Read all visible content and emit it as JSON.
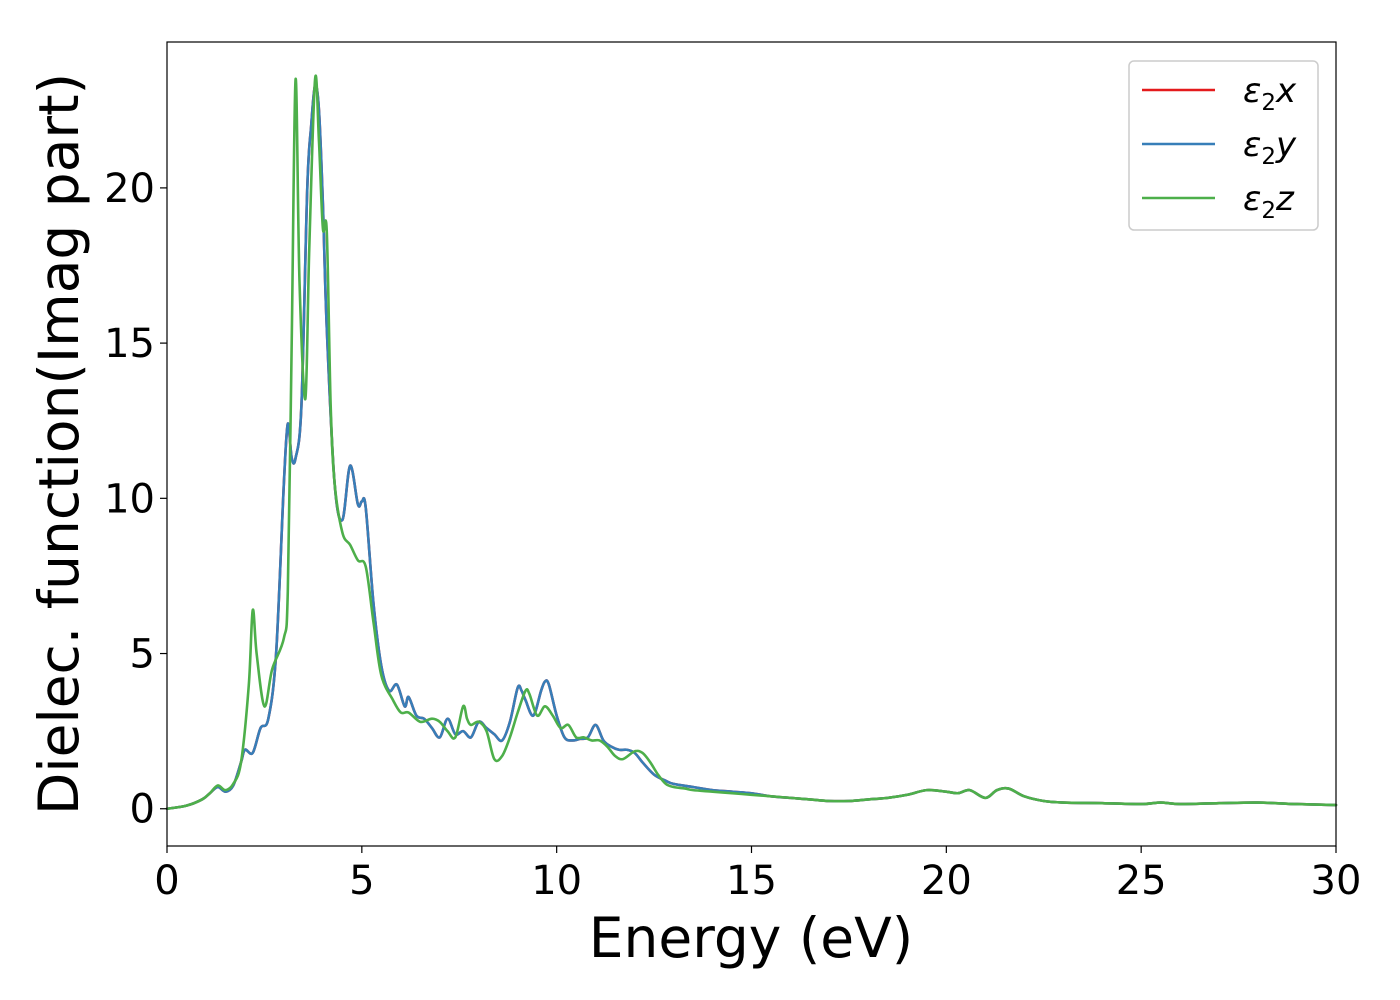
{
  "chart_data": {
    "type": "line",
    "xlabel": "Energy (eV)",
    "ylabel": "Dielec. function(Imag part)",
    "xlim": [
      0,
      30
    ],
    "ylim": [
      -1.2,
      24.7
    ],
    "xticks": [
      0,
      5,
      10,
      15,
      20,
      25,
      30
    ],
    "yticks": [
      0,
      5,
      10,
      15,
      20
    ],
    "grid": false,
    "legend_position": "top-right",
    "series": [
      {
        "name": "ε₂x",
        "legend": {
          "base": "ε",
          "sub": "2",
          "var": "x"
        },
        "color": "#e41a1c",
        "x": [
          0,
          0.5,
          0.9,
          1.1,
          1.3,
          1.5,
          1.7,
          1.9,
          2.0,
          2.2,
          2.4,
          2.6,
          2.8,
          3.0,
          3.1,
          3.2,
          3.3,
          3.45,
          3.6,
          3.7,
          3.8,
          3.9,
          4.0,
          4.1,
          4.3,
          4.5,
          4.7,
          4.9,
          5.0,
          5.1,
          5.3,
          5.5,
          5.7,
          5.9,
          6.1,
          6.2,
          6.4,
          6.6,
          6.8,
          7.0,
          7.2,
          7.4,
          7.6,
          7.8,
          8.0,
          8.2,
          8.4,
          8.6,
          8.8,
          9.0,
          9.1,
          9.2,
          9.4,
          9.6,
          9.7,
          9.8,
          10.0,
          10.2,
          10.4,
          10.6,
          10.8,
          11.0,
          11.2,
          11.4,
          11.6,
          11.8,
          12.0,
          12.2,
          12.5,
          12.8,
          13.0,
          13.5,
          14.0,
          14.5,
          15.0,
          15.5,
          16.0,
          16.5,
          17.0,
          17.5,
          18.0,
          18.5,
          19.0,
          19.5,
          20.0,
          20.3,
          20.6,
          21.0,
          21.3,
          21.6,
          22.0,
          22.5,
          23.0,
          24.0,
          25.0,
          25.5,
          26.0,
          27.0,
          28.0,
          29.0,
          30.0
        ],
        "y": [
          0.0,
          0.1,
          0.3,
          0.5,
          0.7,
          0.55,
          0.75,
          1.5,
          1.9,
          1.8,
          2.6,
          2.9,
          5.0,
          10.5,
          12.4,
          11.3,
          11.3,
          13.0,
          20.0,
          22.0,
          23.3,
          22.5,
          19.5,
          15.5,
          10.5,
          9.3,
          11.05,
          9.8,
          9.9,
          9.7,
          6.6,
          4.6,
          3.8,
          4.0,
          3.3,
          3.6,
          3.0,
          2.9,
          2.6,
          2.3,
          2.9,
          2.4,
          2.5,
          2.3,
          2.8,
          2.6,
          2.4,
          2.2,
          2.8,
          3.9,
          3.8,
          3.5,
          3.0,
          3.8,
          4.1,
          4.0,
          3.0,
          2.3,
          2.2,
          2.25,
          2.3,
          2.7,
          2.2,
          2.0,
          1.9,
          1.9,
          1.8,
          1.5,
          1.1,
          0.9,
          0.8,
          0.7,
          0.6,
          0.55,
          0.5,
          0.4,
          0.35,
          0.3,
          0.25,
          0.25,
          0.3,
          0.35,
          0.45,
          0.6,
          0.55,
          0.5,
          0.6,
          0.35,
          0.6,
          0.65,
          0.4,
          0.25,
          0.2,
          0.18,
          0.15,
          0.2,
          0.15,
          0.18,
          0.2,
          0.15,
          0.12
        ]
      },
      {
        "name": "ε₂y",
        "legend": {
          "base": "ε",
          "sub": "2",
          "var": "y"
        },
        "color": "#377eb8",
        "x": [
          0,
          0.5,
          0.9,
          1.1,
          1.3,
          1.5,
          1.7,
          1.9,
          2.0,
          2.2,
          2.4,
          2.6,
          2.8,
          3.0,
          3.1,
          3.2,
          3.3,
          3.45,
          3.6,
          3.7,
          3.8,
          3.9,
          4.0,
          4.1,
          4.3,
          4.5,
          4.7,
          4.9,
          5.0,
          5.1,
          5.3,
          5.5,
          5.7,
          5.9,
          6.1,
          6.2,
          6.4,
          6.6,
          6.8,
          7.0,
          7.2,
          7.4,
          7.6,
          7.8,
          8.0,
          8.2,
          8.4,
          8.6,
          8.8,
          9.0,
          9.1,
          9.2,
          9.4,
          9.6,
          9.7,
          9.8,
          10.0,
          10.2,
          10.4,
          10.6,
          10.8,
          11.0,
          11.2,
          11.4,
          11.6,
          11.8,
          12.0,
          12.2,
          12.5,
          12.8,
          13.0,
          13.5,
          14.0,
          14.5,
          15.0,
          15.5,
          16.0,
          16.5,
          17.0,
          17.5,
          18.0,
          18.5,
          19.0,
          19.5,
          20.0,
          20.3,
          20.6,
          21.0,
          21.3,
          21.6,
          22.0,
          22.5,
          23.0,
          24.0,
          25.0,
          25.5,
          26.0,
          27.0,
          28.0,
          29.0,
          30.0
        ],
        "y": [
          0.0,
          0.1,
          0.3,
          0.5,
          0.7,
          0.55,
          0.75,
          1.5,
          1.9,
          1.8,
          2.6,
          2.9,
          5.0,
          10.5,
          12.4,
          11.3,
          11.3,
          13.0,
          20.0,
          22.0,
          23.3,
          22.5,
          19.5,
          15.5,
          10.5,
          9.3,
          11.05,
          9.8,
          9.9,
          9.7,
          6.6,
          4.6,
          3.8,
          4.0,
          3.3,
          3.6,
          3.0,
          2.9,
          2.6,
          2.3,
          2.9,
          2.4,
          2.5,
          2.3,
          2.8,
          2.6,
          2.4,
          2.2,
          2.8,
          3.9,
          3.8,
          3.5,
          3.0,
          3.8,
          4.1,
          4.0,
          3.0,
          2.3,
          2.2,
          2.25,
          2.3,
          2.7,
          2.2,
          2.0,
          1.9,
          1.9,
          1.8,
          1.5,
          1.1,
          0.9,
          0.8,
          0.7,
          0.6,
          0.55,
          0.5,
          0.4,
          0.35,
          0.3,
          0.25,
          0.25,
          0.3,
          0.35,
          0.45,
          0.6,
          0.55,
          0.5,
          0.6,
          0.35,
          0.6,
          0.65,
          0.4,
          0.25,
          0.2,
          0.18,
          0.15,
          0.2,
          0.15,
          0.18,
          0.2,
          0.15,
          0.12
        ]
      },
      {
        "name": "ε₂z",
        "legend": {
          "base": "ε",
          "sub": "2",
          "var": "z"
        },
        "color": "#4daf4a",
        "x": [
          0,
          0.5,
          0.9,
          1.1,
          1.3,
          1.5,
          1.7,
          1.9,
          2.1,
          2.2,
          2.3,
          2.5,
          2.7,
          3.0,
          3.1,
          3.2,
          3.3,
          3.4,
          3.55,
          3.65,
          3.8,
          3.9,
          4.0,
          4.1,
          4.2,
          4.3,
          4.5,
          4.7,
          4.9,
          5.1,
          5.3,
          5.5,
          5.8,
          6.0,
          6.2,
          6.5,
          6.8,
          7.0,
          7.2,
          7.4,
          7.6,
          7.7,
          7.8,
          8.0,
          8.2,
          8.4,
          8.6,
          8.8,
          9.0,
          9.2,
          9.3,
          9.5,
          9.7,
          9.9,
          10.1,
          10.3,
          10.5,
          10.7,
          10.9,
          11.1,
          11.3,
          11.5,
          11.7,
          12.0,
          12.2,
          12.4,
          12.6,
          12.8,
          13.0,
          13.3,
          13.5,
          14.0,
          14.5,
          15.0,
          15.5,
          16.0,
          16.5,
          17.0,
          17.5,
          18.0,
          18.5,
          19.0,
          19.5,
          20.0,
          20.3,
          20.6,
          21.0,
          21.3,
          21.6,
          22.0,
          22.5,
          23.0,
          24.0,
          25.0,
          25.5,
          26.0,
          27.0,
          28.0,
          29.0,
          30.0
        ],
        "y": [
          0.0,
          0.1,
          0.3,
          0.5,
          0.75,
          0.6,
          0.8,
          1.5,
          4.0,
          6.4,
          5.0,
          3.3,
          4.5,
          5.5,
          7.0,
          15.0,
          23.5,
          17.0,
          13.2,
          18.0,
          23.5,
          21.5,
          18.7,
          18.6,
          13.0,
          10.5,
          8.9,
          8.5,
          8.0,
          7.8,
          6.0,
          4.3,
          3.5,
          3.1,
          3.1,
          2.8,
          2.9,
          2.8,
          2.5,
          2.3,
          3.3,
          2.9,
          2.7,
          2.8,
          2.5,
          1.6,
          1.7,
          2.3,
          3.1,
          3.8,
          3.7,
          3.0,
          3.3,
          3.0,
          2.6,
          2.7,
          2.3,
          2.3,
          2.2,
          2.2,
          2.0,
          1.7,
          1.6,
          1.85,
          1.8,
          1.5,
          1.1,
          0.8,
          0.7,
          0.65,
          0.6,
          0.55,
          0.5,
          0.45,
          0.4,
          0.35,
          0.3,
          0.25,
          0.25,
          0.3,
          0.35,
          0.45,
          0.6,
          0.55,
          0.5,
          0.6,
          0.35,
          0.6,
          0.65,
          0.4,
          0.25,
          0.2,
          0.18,
          0.15,
          0.2,
          0.15,
          0.18,
          0.2,
          0.15,
          0.12
        ]
      }
    ]
  }
}
